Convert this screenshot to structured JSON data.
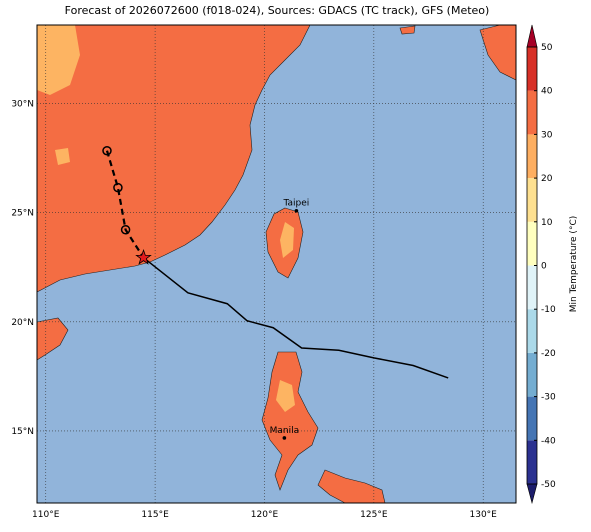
{
  "map": {
    "title": "Forecast of 2026072600 (f018-024), Sources: GDACS (TC track), GFS (Meteo)",
    "xlim": [
      109.6,
      131.5
    ],
    "ylim": [
      11.7,
      33.6
    ],
    "xticks": [
      {
        "value": 110,
        "label": "110°E"
      },
      {
        "value": 115,
        "label": "115°E"
      },
      {
        "value": 120,
        "label": "120°E"
      },
      {
        "value": 125,
        "label": "125°E"
      },
      {
        "value": 130,
        "label": "130°E"
      }
    ],
    "yticks": [
      {
        "value": 15,
        "label": "15°N"
      },
      {
        "value": 20,
        "label": "20°N"
      },
      {
        "value": 25,
        "label": "25°N"
      },
      {
        "value": 30,
        "label": "30°N"
      }
    ],
    "grid": true,
    "colorbar": {
      "label": "Min Temperature (°C)",
      "lim": [
        -50,
        50
      ],
      "ticks": [
        -50,
        -40,
        -30,
        -20,
        -10,
        0,
        10,
        20,
        30,
        40,
        50
      ],
      "colors": [
        "#2b3190",
        "#4575b4",
        "#74add1",
        "#abd9e9",
        "#e0f3f8",
        "#ffffbf",
        "#fee090",
        "#fdae61",
        "#f46d43",
        "#d73027"
      ],
      "under_color": "#1c1d6b",
      "over_color": "#a50026"
    },
    "track": {
      "past": {
        "lon": [
          112.8,
          113.3,
          113.65,
          114.47
        ],
        "lat": [
          27.84,
          26.15,
          24.22,
          22.94
        ]
      },
      "forecast": {
        "lon": [
          114.47,
          116.5,
          118.3,
          119.2,
          120.4,
          121.7,
          123.4,
          125.0,
          126.8,
          128.4
        ],
        "lat": [
          22.94,
          21.33,
          20.83,
          20.05,
          19.73,
          18.8,
          18.7,
          18.35,
          18.0,
          17.43
        ]
      }
    },
    "cities": [
      {
        "name": "Taipei",
        "lon": 121.46,
        "lat": 25.09
      },
      {
        "name": "Manila",
        "lon": 120.91,
        "lat": 14.68
      }
    ]
  }
}
